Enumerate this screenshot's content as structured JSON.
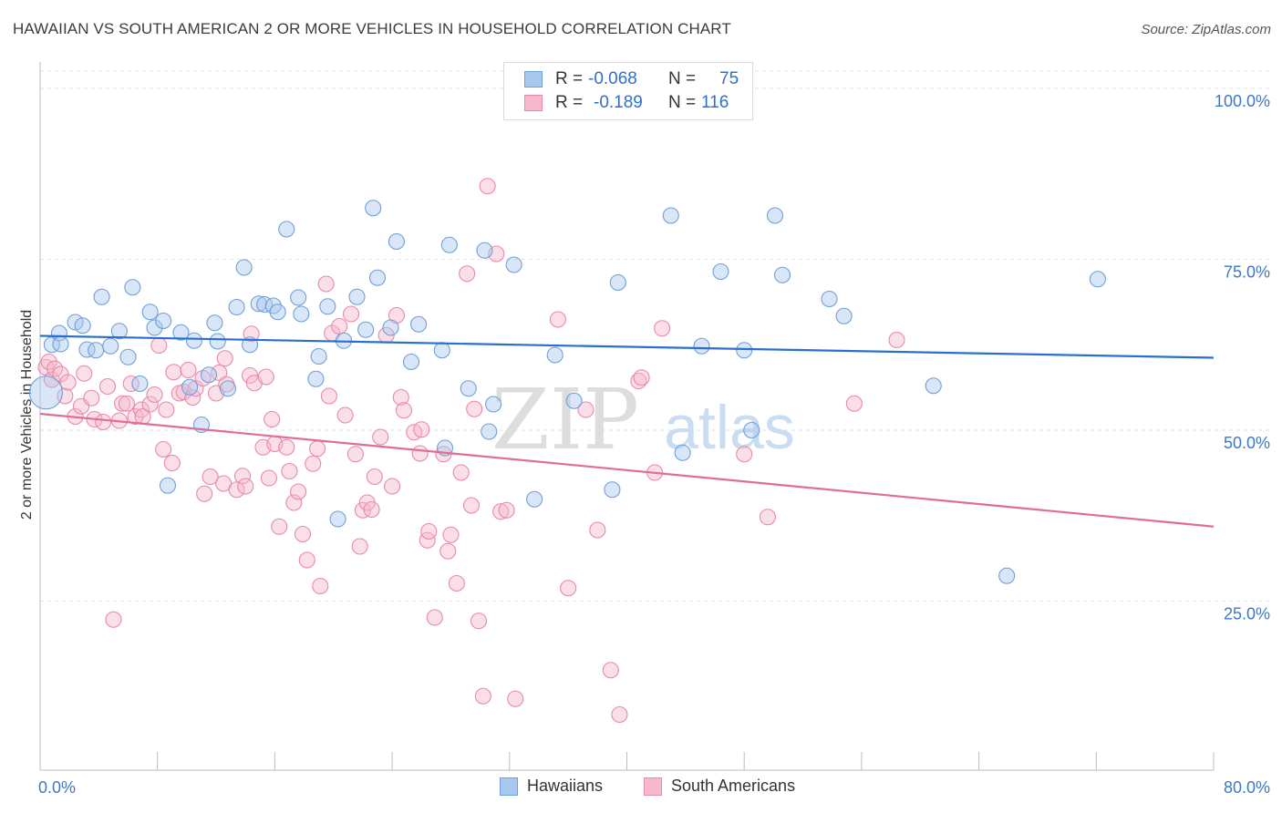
{
  "title": "HAWAIIAN VS SOUTH AMERICAN 2 OR MORE VEHICLES IN HOUSEHOLD CORRELATION CHART",
  "source": "Source: ZipAtlas.com",
  "watermark": {
    "zip": "ZIP",
    "atlas": "atlas"
  },
  "colors": {
    "hawaiians_fill": "#a8c8f0",
    "hawaiians_stroke": "#6f9fd8",
    "hawaiians_line": "#2a6fcf",
    "south_fill": "#f7b8cc",
    "south_stroke": "#e889a8",
    "south_line": "#e06d98",
    "axis_text": "#3d78c8"
  },
  "stats": {
    "hawaiians": {
      "r_label": "R =",
      "r_value": "-0.068",
      "n_label": "N =",
      "n_value": "75"
    },
    "south_americans": {
      "r_label": "R =",
      "r_value": "-0.189",
      "n_label": "N =",
      "n_value": "116"
    }
  },
  "legend": {
    "hawaiians": "Hawaiians",
    "south_americans": "South Americans"
  },
  "chart_data": {
    "type": "scatter",
    "title": "HAWAIIAN VS SOUTH AMERICAN 2 OR MORE VEHICLES IN HOUSEHOLD CORRELATION CHART",
    "xlabel": "",
    "ylabel": "2 or more Vehicles in Household",
    "xlim": [
      0,
      80
    ],
    "ylim": [
      0,
      105
    ],
    "x_tick_labels": [
      "0.0%",
      "80.0%"
    ],
    "y_ticks": [
      25,
      50,
      75,
      100
    ],
    "y_tick_labels": [
      "25.0%",
      "50.0%",
      "75.0%",
      "100.0%"
    ],
    "grid": true,
    "series": [
      {
        "name": "Hawaiians",
        "trend": {
          "x": [
            0,
            80
          ],
          "y": [
            63.8,
            60.6
          ]
        },
        "points": [
          [
            0.4,
            55.5
          ],
          [
            0.8,
            62.5
          ],
          [
            1.3,
            64.2
          ],
          [
            1.4,
            62.6
          ],
          [
            2.4,
            65.8
          ],
          [
            2.9,
            65.3
          ],
          [
            3.2,
            61.8
          ],
          [
            3.8,
            61.7
          ],
          [
            4.2,
            69.5
          ],
          [
            4.8,
            62.3
          ],
          [
            5.4,
            64.5
          ],
          [
            6.0,
            60.7
          ],
          [
            6.3,
            70.9
          ],
          [
            6.8,
            56.8
          ],
          [
            7.5,
            67.3
          ],
          [
            7.8,
            65.0
          ],
          [
            8.4,
            66.0
          ],
          [
            8.7,
            41.9
          ],
          [
            9.6,
            64.3
          ],
          [
            10.2,
            56.3
          ],
          [
            10.5,
            63.1
          ],
          [
            11.0,
            50.8
          ],
          [
            11.5,
            58.1
          ],
          [
            11.9,
            65.7
          ],
          [
            12.1,
            63.0
          ],
          [
            12.8,
            56.1
          ],
          [
            13.4,
            68.0
          ],
          [
            13.9,
            73.8
          ],
          [
            14.3,
            62.5
          ],
          [
            14.9,
            68.5
          ],
          [
            15.3,
            68.4
          ],
          [
            15.9,
            68.2
          ],
          [
            16.2,
            67.3
          ],
          [
            16.8,
            79.4
          ],
          [
            17.6,
            69.4
          ],
          [
            17.8,
            67.0
          ],
          [
            18.8,
            57.5
          ],
          [
            19.0,
            60.8
          ],
          [
            19.6,
            68.1
          ],
          [
            20.3,
            37.0
          ],
          [
            20.7,
            63.1
          ],
          [
            21.6,
            69.5
          ],
          [
            22.2,
            64.7
          ],
          [
            22.7,
            82.5
          ],
          [
            23.0,
            72.3
          ],
          [
            23.9,
            65.0
          ],
          [
            24.3,
            77.6
          ],
          [
            25.3,
            60.0
          ],
          [
            25.8,
            65.5
          ],
          [
            27.4,
            61.7
          ],
          [
            27.6,
            47.4
          ],
          [
            27.9,
            77.1
          ],
          [
            29.2,
            56.1
          ],
          [
            30.3,
            76.3
          ],
          [
            30.6,
            49.8
          ],
          [
            30.9,
            53.8
          ],
          [
            32.3,
            74.2
          ],
          [
            33.7,
            39.9
          ],
          [
            35.1,
            61.0
          ],
          [
            36.4,
            54.3
          ],
          [
            39.0,
            41.3
          ],
          [
            39.4,
            71.6
          ],
          [
            43.0,
            81.4
          ],
          [
            43.8,
            46.7
          ],
          [
            45.1,
            62.3
          ],
          [
            46.4,
            73.2
          ],
          [
            48.0,
            61.7
          ],
          [
            48.5,
            50.0
          ],
          [
            50.1,
            81.4
          ],
          [
            50.6,
            72.7
          ],
          [
            53.8,
            69.2
          ],
          [
            54.8,
            66.7
          ],
          [
            60.9,
            56.5
          ],
          [
            65.9,
            28.7
          ],
          [
            72.1,
            72.1
          ]
        ]
      },
      {
        "name": "South Americans",
        "trend": {
          "x": [
            0,
            80
          ],
          "y": [
            52.4,
            35.9
          ]
        },
        "points": [
          [
            0.4,
            59.2
          ],
          [
            0.6,
            60.0
          ],
          [
            0.8,
            57.4
          ],
          [
            1.0,
            59.0
          ],
          [
            1.4,
            58.2
          ],
          [
            1.7,
            55.0
          ],
          [
            1.9,
            57.0
          ],
          [
            2.4,
            52.0
          ],
          [
            2.8,
            53.5
          ],
          [
            3.0,
            58.3
          ],
          [
            3.5,
            54.7
          ],
          [
            3.7,
            51.6
          ],
          [
            4.3,
            51.2
          ],
          [
            4.6,
            56.4
          ],
          [
            5.0,
            22.3
          ],
          [
            5.4,
            51.4
          ],
          [
            5.6,
            53.9
          ],
          [
            5.9,
            53.9
          ],
          [
            6.2,
            56.8
          ],
          [
            6.5,
            52.0
          ],
          [
            6.9,
            53.0
          ],
          [
            7.0,
            52.0
          ],
          [
            7.5,
            53.8
          ],
          [
            7.8,
            55.2
          ],
          [
            8.1,
            62.4
          ],
          [
            8.4,
            47.2
          ],
          [
            8.6,
            53.0
          ],
          [
            9.0,
            45.2
          ],
          [
            9.1,
            58.5
          ],
          [
            9.5,
            55.4
          ],
          [
            9.8,
            55.6
          ],
          [
            10.1,
            58.8
          ],
          [
            10.4,
            54.8
          ],
          [
            10.6,
            56.1
          ],
          [
            11.1,
            57.6
          ],
          [
            11.2,
            40.7
          ],
          [
            11.6,
            43.2
          ],
          [
            12.0,
            55.4
          ],
          [
            12.2,
            58.4
          ],
          [
            12.5,
            42.2
          ],
          [
            12.6,
            60.5
          ],
          [
            12.7,
            56.7
          ],
          [
            13.4,
            41.3
          ],
          [
            13.8,
            43.3
          ],
          [
            14.0,
            41.8
          ],
          [
            14.3,
            58.0
          ],
          [
            14.4,
            64.1
          ],
          [
            14.6,
            56.9
          ],
          [
            15.2,
            47.5
          ],
          [
            15.4,
            57.8
          ],
          [
            15.6,
            43.0
          ],
          [
            15.8,
            51.6
          ],
          [
            16.0,
            48.0
          ],
          [
            16.3,
            35.9
          ],
          [
            16.8,
            47.5
          ],
          [
            17.0,
            44.0
          ],
          [
            17.3,
            39.4
          ],
          [
            17.6,
            41.0
          ],
          [
            17.9,
            34.8
          ],
          [
            18.2,
            31.0
          ],
          [
            18.6,
            45.1
          ],
          [
            18.9,
            47.3
          ],
          [
            19.1,
            27.2
          ],
          [
            19.5,
            71.4
          ],
          [
            19.7,
            55.0
          ],
          [
            19.9,
            64.2
          ],
          [
            20.4,
            65.2
          ],
          [
            20.8,
            52.2
          ],
          [
            21.2,
            67.0
          ],
          [
            21.5,
            46.5
          ],
          [
            21.8,
            33.0
          ],
          [
            22.0,
            38.3
          ],
          [
            22.3,
            39.4
          ],
          [
            22.6,
            38.4
          ],
          [
            22.8,
            43.2
          ],
          [
            23.2,
            49.0
          ],
          [
            23.6,
            63.9
          ],
          [
            24.0,
            41.8
          ],
          [
            24.3,
            66.8
          ],
          [
            24.6,
            54.8
          ],
          [
            24.8,
            52.9
          ],
          [
            25.5,
            49.7
          ],
          [
            25.9,
            46.6
          ],
          [
            26.0,
            50.1
          ],
          [
            26.4,
            33.9
          ],
          [
            26.5,
            35.2
          ],
          [
            26.9,
            22.6
          ],
          [
            27.5,
            46.5
          ],
          [
            27.8,
            32.3
          ],
          [
            28.0,
            34.7
          ],
          [
            28.4,
            27.6
          ],
          [
            28.7,
            43.8
          ],
          [
            29.1,
            72.9
          ],
          [
            29.4,
            39.0
          ],
          [
            29.6,
            53.1
          ],
          [
            29.9,
            22.1
          ],
          [
            30.2,
            11.1
          ],
          [
            30.5,
            85.7
          ],
          [
            31.1,
            75.8
          ],
          [
            31.4,
            38.1
          ],
          [
            31.8,
            38.3
          ],
          [
            32.4,
            10.7
          ],
          [
            35.3,
            66.2
          ],
          [
            36.0,
            26.9
          ],
          [
            37.2,
            53.0
          ],
          [
            38.0,
            35.4
          ],
          [
            38.9,
            14.9
          ],
          [
            39.5,
            8.4
          ],
          [
            40.8,
            57.2
          ],
          [
            41.0,
            57.7
          ],
          [
            41.9,
            43.8
          ],
          [
            42.4,
            64.9
          ],
          [
            48.0,
            46.5
          ],
          [
            49.6,
            37.3
          ],
          [
            55.5,
            53.9
          ],
          [
            58.4,
            63.2
          ]
        ]
      }
    ]
  }
}
